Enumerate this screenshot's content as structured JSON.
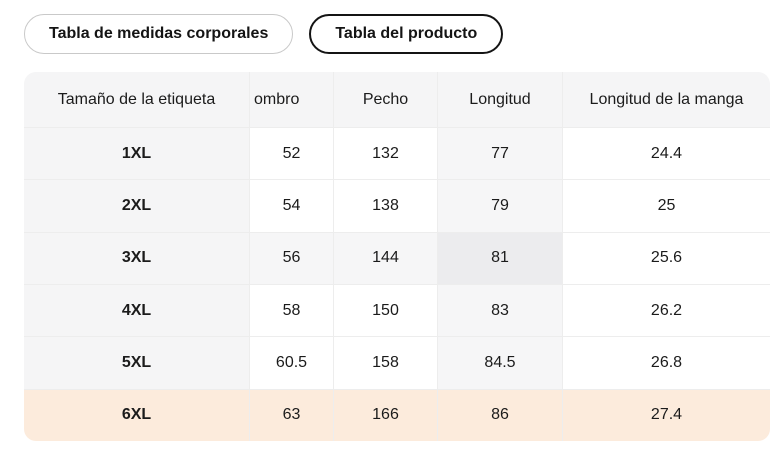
{
  "tabs": [
    {
      "label": "Tabla de medidas corporales",
      "selected": false
    },
    {
      "label": "Tabla del producto",
      "selected": true
    }
  ],
  "table": {
    "columns": [
      "Tamaño de la etiqueta",
      "ombro",
      "Pecho",
      "Longitud",
      "Longitud de la manga"
    ],
    "rows": [
      {
        "size": "1XL",
        "values": [
          "52",
          "132",
          "77",
          "24.4"
        ]
      },
      {
        "size": "2XL",
        "values": [
          "54",
          "138",
          "79",
          "25"
        ]
      },
      {
        "size": "3XL",
        "values": [
          "56",
          "144",
          "81",
          "25.6"
        ]
      },
      {
        "size": "4XL",
        "values": [
          "58",
          "150",
          "83",
          "26.2"
        ]
      },
      {
        "size": "5XL",
        "values": [
          "60.5",
          "158",
          "84.5",
          "26.8"
        ]
      },
      {
        "size": "6XL",
        "values": [
          "63",
          "166",
          "86",
          "27.4"
        ]
      }
    ],
    "selected_row": "6XL",
    "highlighted_row": "3XL",
    "highlighted_column": "Longitud",
    "highlighted_cell_value": "81"
  },
  "colors": {
    "header_bg": "#f5f5f6",
    "first_column_bg": "#f5f5f6",
    "highlight_tint": "#f6f6f7",
    "highlight_cell": "#ececee",
    "selected_row_bg": "#fcebdc",
    "divider": "#ededed",
    "tab_selected_border": "#141414",
    "tab_border": "#c9c9c9",
    "text": "#1b1b1b"
  }
}
